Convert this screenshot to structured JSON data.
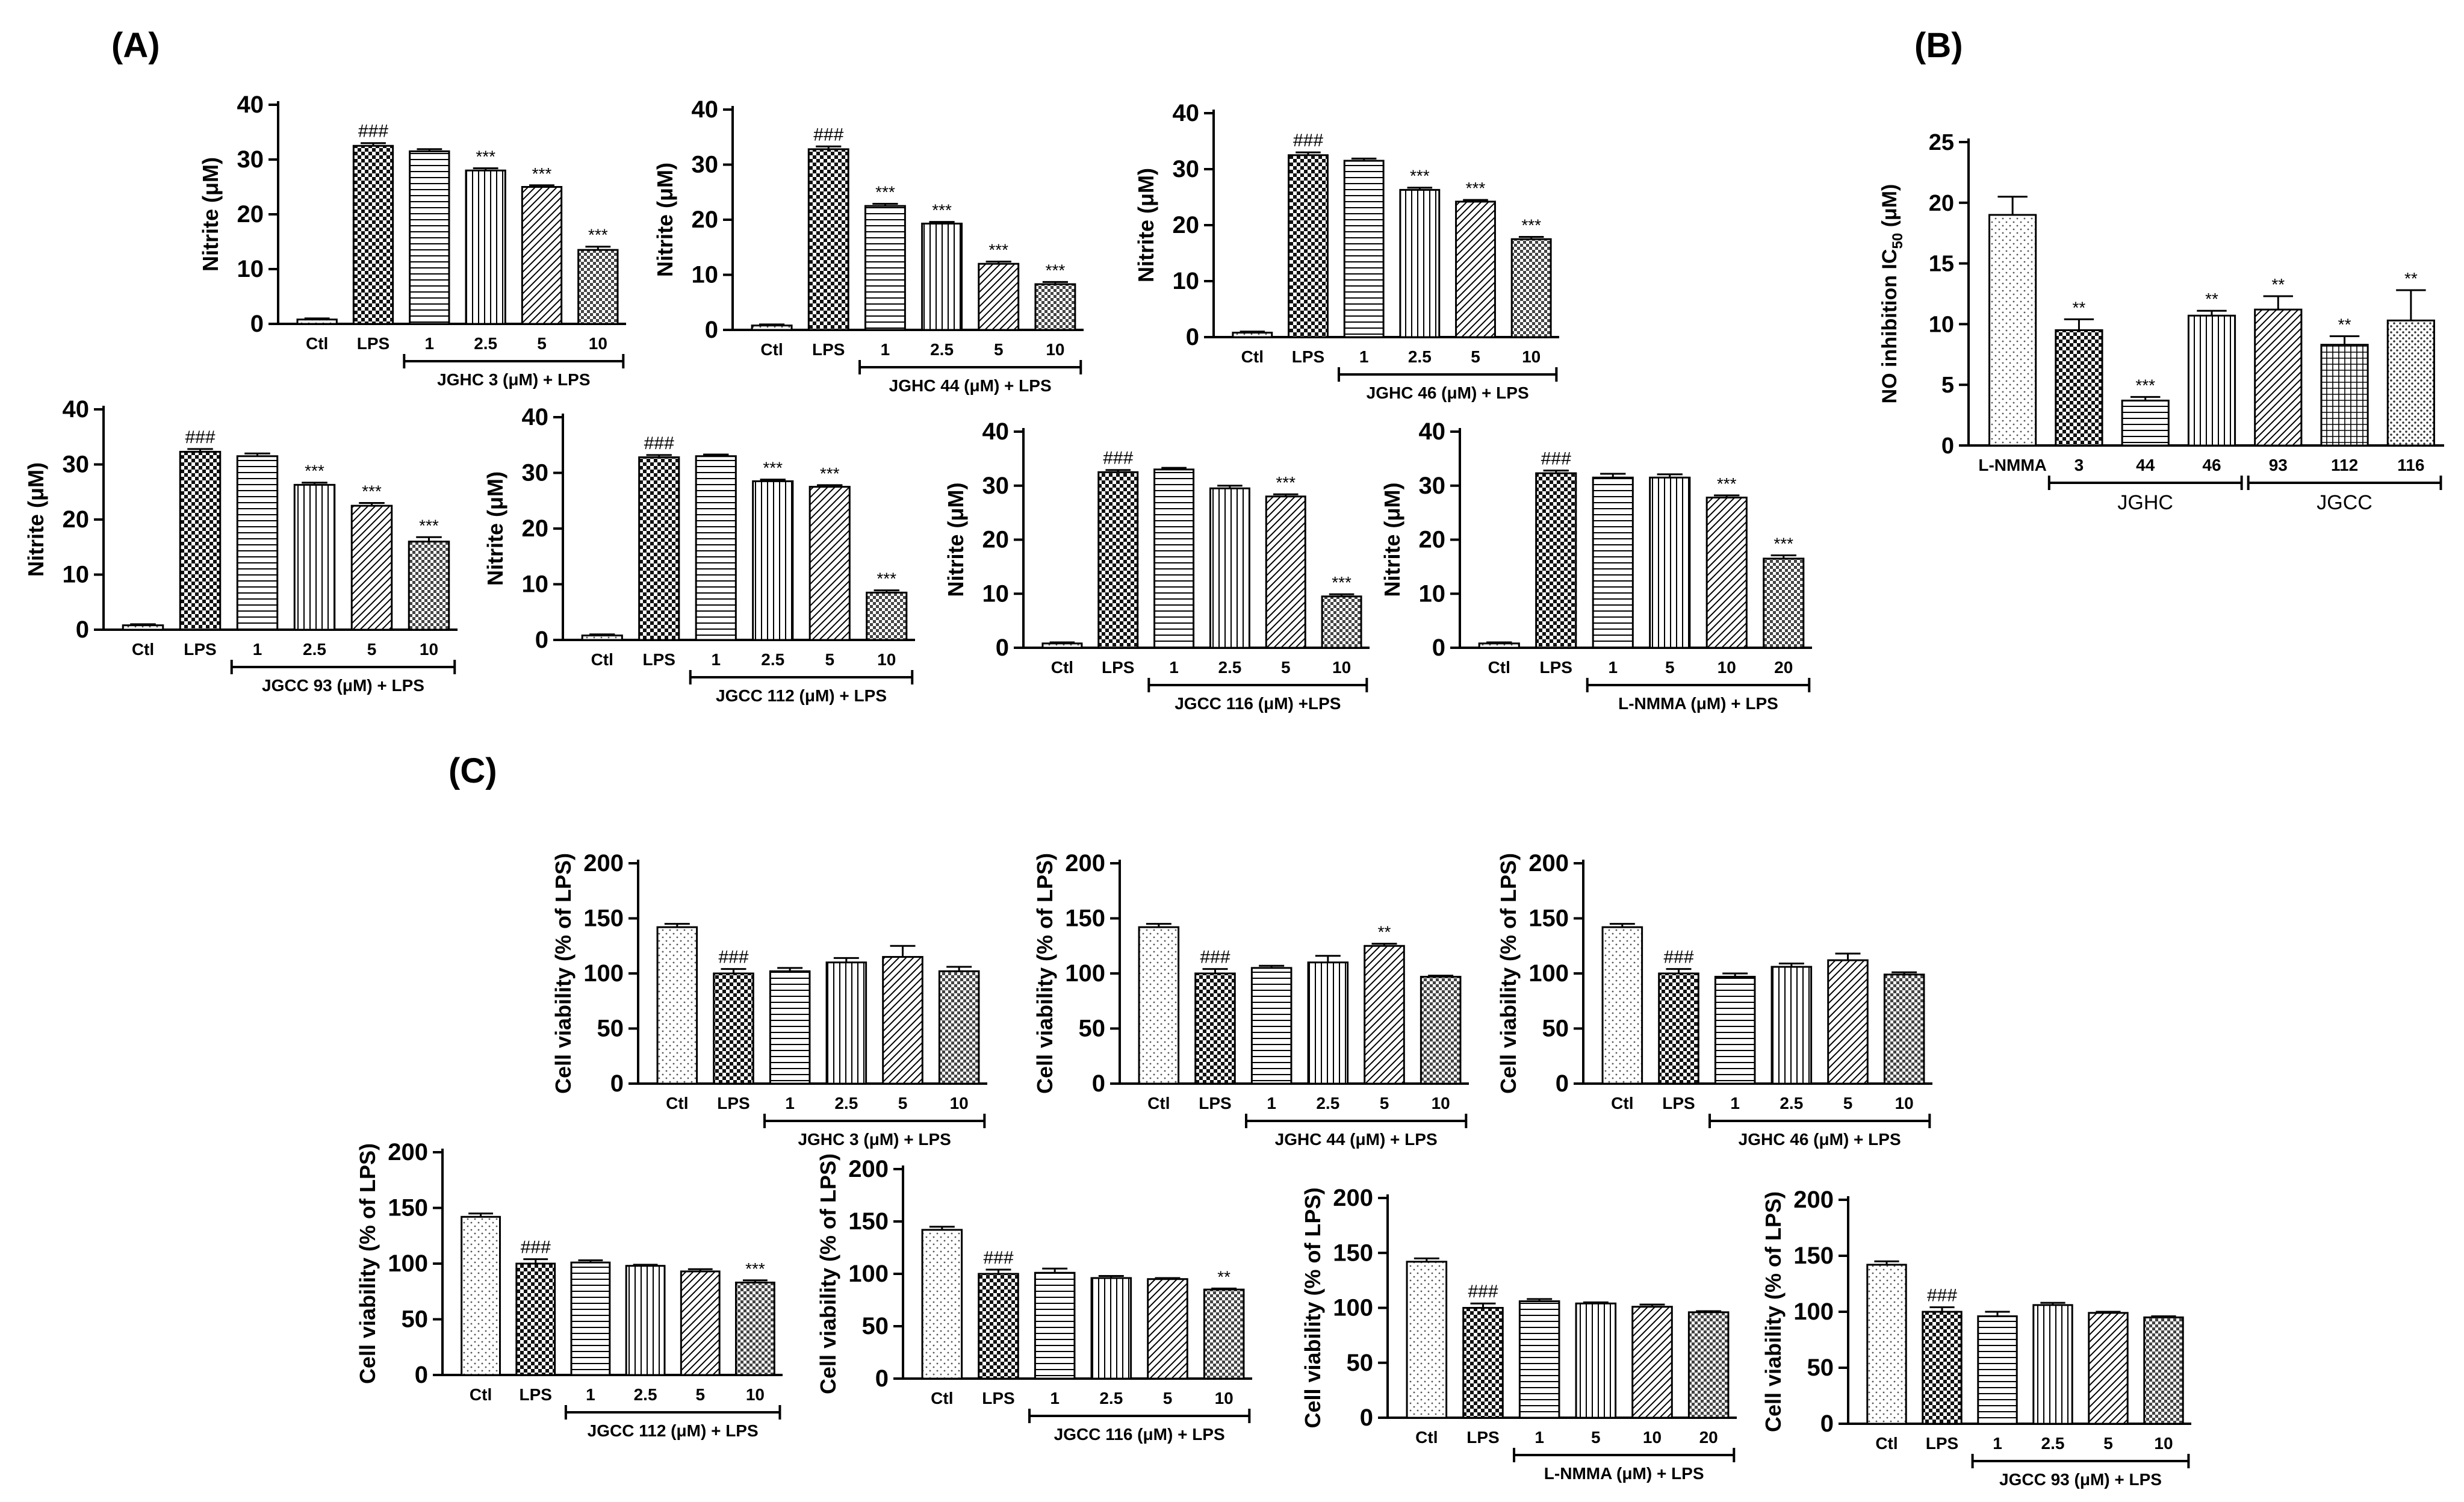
{
  "panel_labels": [
    "(A)",
    "(B)",
    "(C)"
  ],
  "chart_data": [
    {
      "id": "A1",
      "panel": "A",
      "type": "bar",
      "ylabel": "Nitrite (μM)",
      "ylim": [
        0,
        40
      ],
      "yticks": [
        0,
        10,
        20,
        30,
        40
      ],
      "categories": [
        "Ctl",
        "LPS",
        "1",
        "2.5",
        "5",
        "10"
      ],
      "values": [
        0.8,
        32.5,
        31.5,
        28,
        25,
        13.5
      ],
      "errors": [
        0.2,
        0.5,
        0.4,
        0.4,
        0.3,
        0.6
      ],
      "patterns": [
        "dots",
        "checker",
        "hlines",
        "vlines",
        "diag",
        "checker2"
      ],
      "annotations": [
        "",
        "###",
        "",
        "***",
        "***",
        "***"
      ],
      "group_label": "JGHC 3 (μM) + LPS"
    },
    {
      "id": "A2",
      "panel": "A",
      "type": "bar",
      "ylabel": "Nitrite (μM)",
      "ylim": [
        0,
        40
      ],
      "yticks": [
        0,
        10,
        20,
        30,
        40
      ],
      "categories": [
        "Ctl",
        "LPS",
        "1",
        "2.5",
        "5",
        "10"
      ],
      "values": [
        0.8,
        32.8,
        22.5,
        19.3,
        12,
        8.3
      ],
      "errors": [
        0.2,
        0.5,
        0.4,
        0.3,
        0.4,
        0.4
      ],
      "patterns": [
        "dots",
        "checker",
        "hlines",
        "vlines",
        "diag",
        "checker2"
      ],
      "annotations": [
        "",
        "###",
        "***",
        "***",
        "***",
        "***"
      ],
      "group_label": "JGHC 44 (μM) + LPS"
    },
    {
      "id": "A3",
      "panel": "A",
      "type": "bar",
      "ylabel": "Nitrite (μM)",
      "ylim": [
        0,
        40
      ],
      "yticks": [
        0,
        10,
        20,
        30,
        40
      ],
      "categories": [
        "Ctl",
        "LPS",
        "1",
        "2.5",
        "5",
        "10"
      ],
      "values": [
        0.8,
        32.5,
        31.5,
        26.3,
        24.2,
        17.5
      ],
      "errors": [
        0.2,
        0.5,
        0.4,
        0.4,
        0.3,
        0.4
      ],
      "patterns": [
        "dots",
        "checker",
        "hlines",
        "vlines",
        "diag",
        "checker2"
      ],
      "annotations": [
        "",
        "###",
        "",
        "***",
        "***",
        "***"
      ],
      "group_label": "JGHC 46 (μM) + LPS"
    },
    {
      "id": "A4",
      "panel": "A",
      "type": "bar",
      "ylabel": "Nitrite (μM)",
      "ylim": [
        0,
        40
      ],
      "yticks": [
        0,
        10,
        20,
        30,
        40
      ],
      "categories": [
        "Ctl",
        "LPS",
        "1",
        "2.5",
        "5",
        "10"
      ],
      "values": [
        0.8,
        32.3,
        31.5,
        26.3,
        22.5,
        16
      ],
      "errors": [
        0.2,
        0.5,
        0.5,
        0.4,
        0.5,
        0.8
      ],
      "patterns": [
        "dots",
        "checker",
        "hlines",
        "vlines",
        "diag",
        "checker2"
      ],
      "annotations": [
        "",
        "###",
        "",
        "***",
        "***",
        "***"
      ],
      "group_label": "JGCC 93 (μM) + LPS"
    },
    {
      "id": "A5",
      "panel": "A",
      "type": "bar",
      "ylabel": "Nitrite (μM)",
      "ylim": [
        0,
        40
      ],
      "yticks": [
        0,
        10,
        20,
        30,
        40
      ],
      "categories": [
        "Ctl",
        "LPS",
        "1",
        "2.5",
        "5",
        "10"
      ],
      "values": [
        0.8,
        32.8,
        33,
        28.5,
        27.5,
        8.5
      ],
      "errors": [
        0.2,
        0.4,
        0.3,
        0.3,
        0.3,
        0.4
      ],
      "patterns": [
        "dots",
        "checker",
        "hlines",
        "vlines",
        "diag",
        "checker2"
      ],
      "annotations": [
        "",
        "###",
        "",
        "***",
        "***",
        "***"
      ],
      "group_label": "JGCC 112 (μM) + LPS"
    },
    {
      "id": "A6",
      "panel": "A",
      "type": "bar",
      "ylabel": "Nitrite (μM)",
      "ylim": [
        0,
        40
      ],
      "yticks": [
        0,
        10,
        20,
        30,
        40
      ],
      "categories": [
        "Ctl",
        "LPS",
        "1",
        "2.5",
        "5",
        "10"
      ],
      "values": [
        0.8,
        32.5,
        33,
        29.5,
        28,
        9.5
      ],
      "errors": [
        0.2,
        0.4,
        0.3,
        0.5,
        0.4,
        0.4
      ],
      "patterns": [
        "dots",
        "checker",
        "hlines",
        "vlines",
        "diag",
        "checker2"
      ],
      "annotations": [
        "",
        "###",
        "",
        "",
        "***",
        "***"
      ],
      "group_label": "JGCC 116 (μM) +LPS"
    },
    {
      "id": "A7",
      "panel": "A",
      "type": "bar",
      "ylabel": "Nitrite (μM)",
      "ylim": [
        0,
        40
      ],
      "yticks": [
        0,
        10,
        20,
        30,
        40
      ],
      "categories": [
        "Ctl",
        "LPS",
        "1",
        "5",
        "10",
        "20"
      ],
      "values": [
        0.8,
        32.3,
        31.5,
        31.5,
        27.8,
        16.5
      ],
      "errors": [
        0.2,
        0.5,
        0.7,
        0.6,
        0.4,
        0.6
      ],
      "patterns": [
        "dots",
        "checker",
        "hlines",
        "vlines",
        "diag",
        "checker2"
      ],
      "annotations": [
        "",
        "###",
        "",
        "",
        "***",
        "***"
      ],
      "group_label": "L-NMMA (μM) + LPS"
    },
    {
      "id": "B",
      "panel": "B",
      "type": "bar",
      "ylabel": "NO inhibition IC",
      "ylabel_sub": "50",
      "ylabel_suffix": " (μM)",
      "ylim": [
        0,
        25
      ],
      "yticks": [
        0,
        5,
        10,
        15,
        20,
        25
      ],
      "categories": [
        "L-NMMA",
        "3",
        "44",
        "46",
        "93",
        "112",
        "116"
      ],
      "values": [
        19,
        9.5,
        3.7,
        10.7,
        11.2,
        8.3,
        10.3
      ],
      "errors": [
        1.5,
        0.9,
        0.3,
        0.4,
        1.1,
        0.7,
        2.5
      ],
      "patterns": [
        "dots",
        "checker",
        "hlines",
        "vlines",
        "diag",
        "grid",
        "dots2"
      ],
      "annotations": [
        "",
        "**",
        "***",
        "**",
        "**",
        "**",
        "**"
      ],
      "groups": [
        {
          "label": "JGHC",
          "from": 1,
          "to": 3
        },
        {
          "label": "JGCC",
          "from": 4,
          "to": 6
        }
      ]
    },
    {
      "id": "C1",
      "panel": "C",
      "type": "bar",
      "ylabel": "Cell viability (% of LPS)",
      "ylim": [
        0,
        200
      ],
      "yticks": [
        0,
        50,
        100,
        150,
        200
      ],
      "categories": [
        "Ctl",
        "LPS",
        "1",
        "2.5",
        "5",
        "10"
      ],
      "values": [
        142,
        100,
        102,
        110,
        115,
        102
      ],
      "errors": [
        3,
        4,
        3,
        4,
        10,
        4
      ],
      "patterns": [
        "dots",
        "checker",
        "hlines",
        "vlines",
        "diag",
        "checker2"
      ],
      "annotations": [
        "",
        "###",
        "",
        "",
        "",
        ""
      ],
      "group_label": "JGHC 3 (μM) + LPS"
    },
    {
      "id": "C2",
      "panel": "C",
      "type": "bar",
      "ylabel": "Cell viability (% of LPS)",
      "ylim": [
        0,
        200
      ],
      "yticks": [
        0,
        50,
        100,
        150,
        200
      ],
      "categories": [
        "Ctl",
        "LPS",
        "1",
        "2.5",
        "5",
        "10"
      ],
      "values": [
        142,
        100,
        105,
        110,
        125,
        97
      ],
      "errors": [
        3,
        4,
        2,
        6,
        2,
        1
      ],
      "patterns": [
        "dots",
        "checker",
        "hlines",
        "vlines",
        "diag",
        "checker2"
      ],
      "annotations": [
        "",
        "###",
        "",
        "",
        "**",
        ""
      ],
      "group_label": "JGHC 44 (μM) + LPS"
    },
    {
      "id": "C3",
      "panel": "C",
      "type": "bar",
      "ylabel": "Cell viability (% of LPS)",
      "ylim": [
        0,
        200
      ],
      "yticks": [
        0,
        50,
        100,
        150,
        200
      ],
      "categories": [
        "Ctl",
        "LPS",
        "1",
        "2.5",
        "5",
        "10"
      ],
      "values": [
        142,
        100,
        97,
        106,
        112,
        99
      ],
      "errors": [
        3,
        4,
        3,
        3,
        6,
        2
      ],
      "patterns": [
        "dots",
        "checker",
        "hlines",
        "vlines",
        "diag",
        "checker2"
      ],
      "annotations": [
        "",
        "###",
        "",
        "",
        "",
        ""
      ],
      "group_label": "JGHC 46 (μM) + LPS"
    },
    {
      "id": "C4",
      "panel": "C",
      "type": "bar",
      "ylabel": "Cell viability (% of LPS)",
      "ylim": [
        0,
        200
      ],
      "yticks": [
        0,
        50,
        100,
        150,
        200
      ],
      "categories": [
        "Ctl",
        "LPS",
        "1",
        "2.5",
        "5",
        "10"
      ],
      "values": [
        142,
        100,
        101,
        98,
        93,
        83
      ],
      "errors": [
        3,
        4,
        2,
        1,
        2,
        2
      ],
      "patterns": [
        "dots",
        "checker",
        "hlines",
        "vlines",
        "diag",
        "checker2"
      ],
      "annotations": [
        "",
        "###",
        "",
        "",
        "",
        "***"
      ],
      "group_label": "JGCC 112 (μM) + LPS"
    },
    {
      "id": "C5",
      "panel": "C",
      "type": "bar",
      "ylabel": "Cell viability (% of LPS)",
      "ylim": [
        0,
        200
      ],
      "yticks": [
        0,
        50,
        100,
        150,
        200
      ],
      "categories": [
        "Ctl",
        "LPS",
        "1",
        "2.5",
        "5",
        "10"
      ],
      "values": [
        142,
        100,
        101,
        96,
        95,
        85
      ],
      "errors": [
        3,
        4,
        4,
        2,
        1,
        1
      ],
      "patterns": [
        "dots",
        "checker",
        "hlines",
        "vlines",
        "diag",
        "checker2"
      ],
      "annotations": [
        "",
        "###",
        "",
        "",
        "",
        "**"
      ],
      "group_label": "JGCC 116 (μM) + LPS"
    },
    {
      "id": "C6",
      "panel": "C",
      "type": "bar",
      "ylabel": "Cell viability (% of LPS)",
      "ylim": [
        0,
        200
      ],
      "yticks": [
        0,
        50,
        100,
        150,
        200
      ],
      "categories": [
        "Ctl",
        "LPS",
        "1",
        "5",
        "10",
        "20"
      ],
      "values": [
        142,
        100,
        106,
        104,
        101,
        96
      ],
      "errors": [
        3,
        4,
        2,
        1,
        2,
        1
      ],
      "patterns": [
        "dots",
        "checker",
        "hlines",
        "vlines",
        "diag",
        "checker2"
      ],
      "annotations": [
        "",
        "###",
        "",
        "",
        "",
        ""
      ],
      "group_label": "L-NMMA (μM) + LPS"
    },
    {
      "id": "C7",
      "panel": "C",
      "type": "bar",
      "ylabel": "Cell viability (% of LPS)",
      "ylim": [
        0,
        200
      ],
      "yticks": [
        0,
        50,
        100,
        150,
        200
      ],
      "categories": [
        "Ctl",
        "LPS",
        "1",
        "2.5",
        "5",
        "10"
      ],
      "values": [
        142,
        100,
        96,
        106,
        99,
        95
      ],
      "errors": [
        3,
        4,
        4,
        2,
        1,
        1
      ],
      "patterns": [
        "dots",
        "checker",
        "hlines",
        "vlines",
        "diag",
        "checker2"
      ],
      "annotations": [
        "",
        "###",
        "",
        "",
        "",
        ""
      ],
      "group_label": "JGCC 93 (μM) + LPS"
    }
  ]
}
